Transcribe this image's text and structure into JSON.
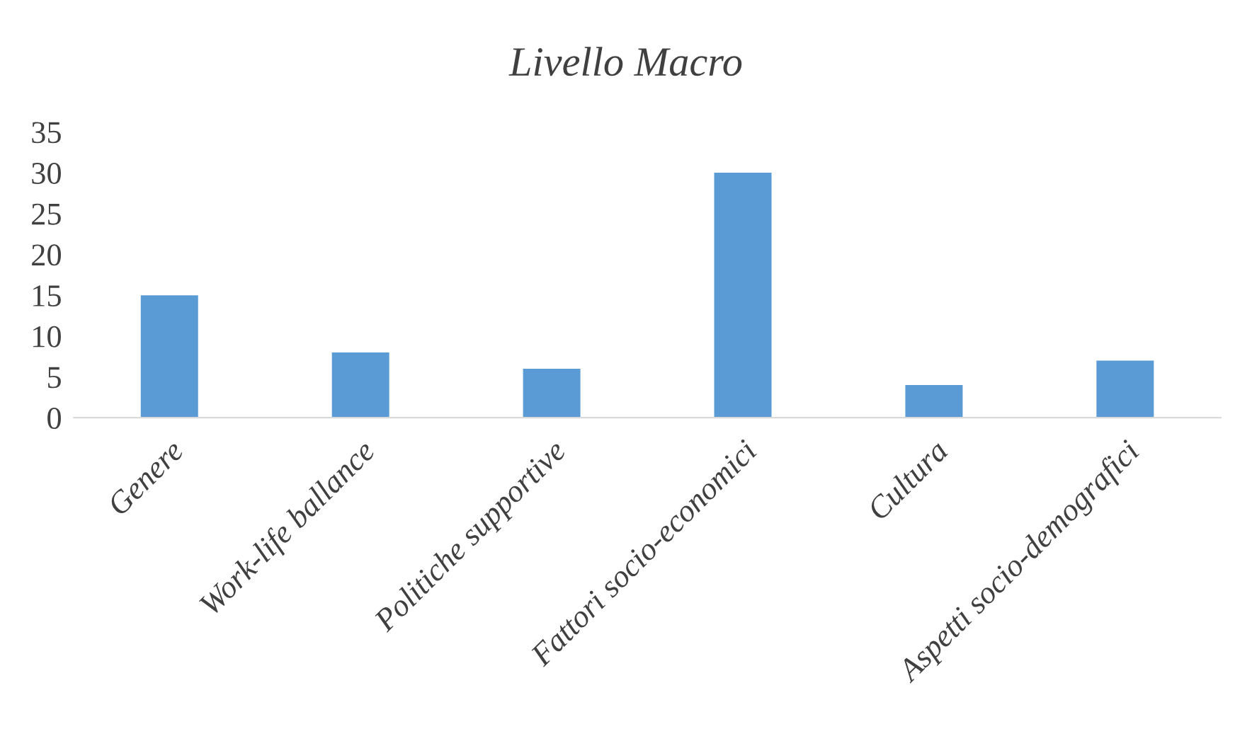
{
  "chart_data": {
    "type": "bar",
    "title": "Livello Macro",
    "categories": [
      "Genere",
      "Work-life ballance",
      "Politiche supportive",
      "Fattori socio-economici",
      "Cultura",
      "Aspetti socio-demografici"
    ],
    "values": [
      15,
      8,
      6,
      30,
      4,
      7
    ],
    "color": "#5b9bd5",
    "ylim": [
      0,
      35
    ],
    "yticks": [
      0,
      5,
      10,
      15,
      20,
      25,
      30,
      35
    ],
    "grid": false,
    "legend": false
  }
}
